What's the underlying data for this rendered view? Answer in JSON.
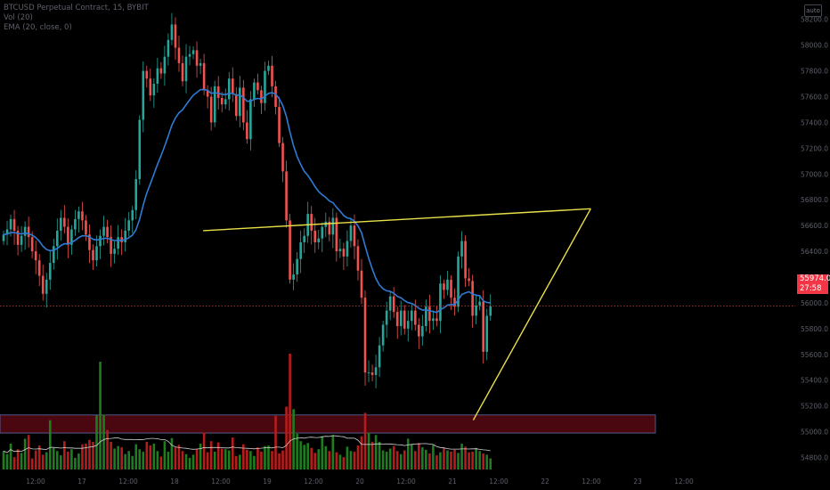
{
  "legend": {
    "symbol": "BTCUSD Perpetual Contract, 15, BYBIT",
    "volume": "Vol (20)",
    "ema": "EMA (20, close, 0)"
  },
  "corner_button": "auto",
  "last_price": {
    "value": "55974.0",
    "countdown": "27:58"
  },
  "colors": {
    "up": "#26a69a",
    "down": "#ef5350",
    "vol_up": "#1e7d1e",
    "vol_down": "#b71c1c",
    "ema": "#2f7bd4",
    "trend": "#e8e04a",
    "zone_fill": "#4a0710",
    "zone_border": "#5a6fa8"
  },
  "chart_data": {
    "type": "candlestick",
    "y_ticks": [
      "58200.0",
      "58000.0",
      "57800.0",
      "57600.0",
      "57400.0",
      "57200.0",
      "57000.0",
      "56800.0",
      "56600.0",
      "56400.0",
      "56200.0",
      "56000.0",
      "55800.0",
      "55600.0",
      "55400.0",
      "55200.0",
      "55000.0",
      "54800.0"
    ],
    "y_range": [
      54700,
      58350
    ],
    "x_ticks": [
      "12:00",
      "17",
      "12:00",
      "18",
      "12:00",
      "19",
      "12:00",
      "20",
      "12:00",
      "21",
      "12:00",
      "22",
      "12:00",
      "23",
      "12:00"
    ],
    "close": [
      56530,
      56570,
      56650,
      56560,
      56450,
      56520,
      56590,
      56510,
      56400,
      56330,
      56210,
      56070,
      56180,
      56310,
      56440,
      56560,
      56660,
      56590,
      56450,
      56570,
      56650,
      56710,
      56640,
      56530,
      56410,
      56330,
      56440,
      56520,
      56590,
      56510,
      56380,
      56420,
      56510,
      56470,
      56560,
      56640,
      56720,
      56960,
      57420,
      57800,
      57740,
      57610,
      57700,
      57820,
      57780,
      57910,
      58040,
      58160,
      57980,
      57860,
      57720,
      57910,
      57930,
      57960,
      57840,
      57860,
      57650,
      57600,
      57400,
      57680,
      57590,
      57540,
      57580,
      57740,
      57620,
      57450,
      57670,
      57400,
      57270,
      57580,
      57710,
      57650,
      57550,
      57800,
      57840,
      57680,
      57520,
      57240,
      57020,
      56640,
      56180,
      56220,
      56340,
      56470,
      56520,
      56690,
      56560,
      56470,
      56500,
      56590,
      56630,
      56530,
      56660,
      56400,
      56420,
      56360,
      56480,
      56600,
      56440,
      56250,
      56040,
      55460,
      55460,
      55440,
      55500,
      55670,
      55830,
      55940,
      56050,
      55930,
      55820,
      55940,
      55800,
      55860,
      55940,
      55830,
      55740,
      55820,
      55970,
      55860,
      55880,
      55860,
      56150,
      56100,
      56180,
      56040,
      55970,
      56360,
      56480,
      56190,
      56170,
      55900,
      55980,
      56010,
      55620,
      55900,
      55974
    ],
    "open_first": 56480,
    "ema_period": 20,
    "volume": [
      300,
      250,
      420,
      200,
      330,
      270,
      500,
      560,
      180,
      310,
      390,
      240,
      280,
      800,
      350,
      300,
      230,
      460,
      290,
      330,
      190,
      260,
      410,
      420,
      480,
      450,
      880,
      1750,
      890,
      640,
      450,
      340,
      380,
      360,
      250,
      300,
      220,
      410,
      330,
      290,
      450,
      390,
      420,
      300,
      210,
      460,
      290,
      510,
      360,
      400,
      300,
      250,
      190,
      240,
      330,
      420,
      600,
      280,
      460,
      290,
      440,
      340,
      330,
      310,
      520,
      220,
      240,
      410,
      320,
      300,
      220,
      360,
      290,
      380,
      390,
      300,
      870,
      260,
      310,
      1020,
      1880,
      980,
      580,
      460,
      400,
      430,
      350,
      270,
      330,
      540,
      380,
      300,
      560,
      280,
      240,
      200,
      370,
      300,
      290,
      390,
      540,
      920,
      600,
      450,
      560,
      450,
      310,
      290,
      340,
      380,
      300,
      250,
      310,
      500,
      410,
      300,
      430,
      360,
      320,
      260,
      400,
      230,
      280,
      350,
      310,
      290,
      320,
      270,
      420,
      370,
      280,
      290,
      350,
      300,
      260,
      240,
      180
    ],
    "zone": {
      "low": 54990,
      "high": 55130
    },
    "triangle": {
      "upper": [
        [
          34,
          56560
        ],
        [
          100,
          56730
        ]
      ],
      "lower": [
        [
          80,
          55090
        ],
        [
          100,
          56730
        ]
      ]
    }
  }
}
